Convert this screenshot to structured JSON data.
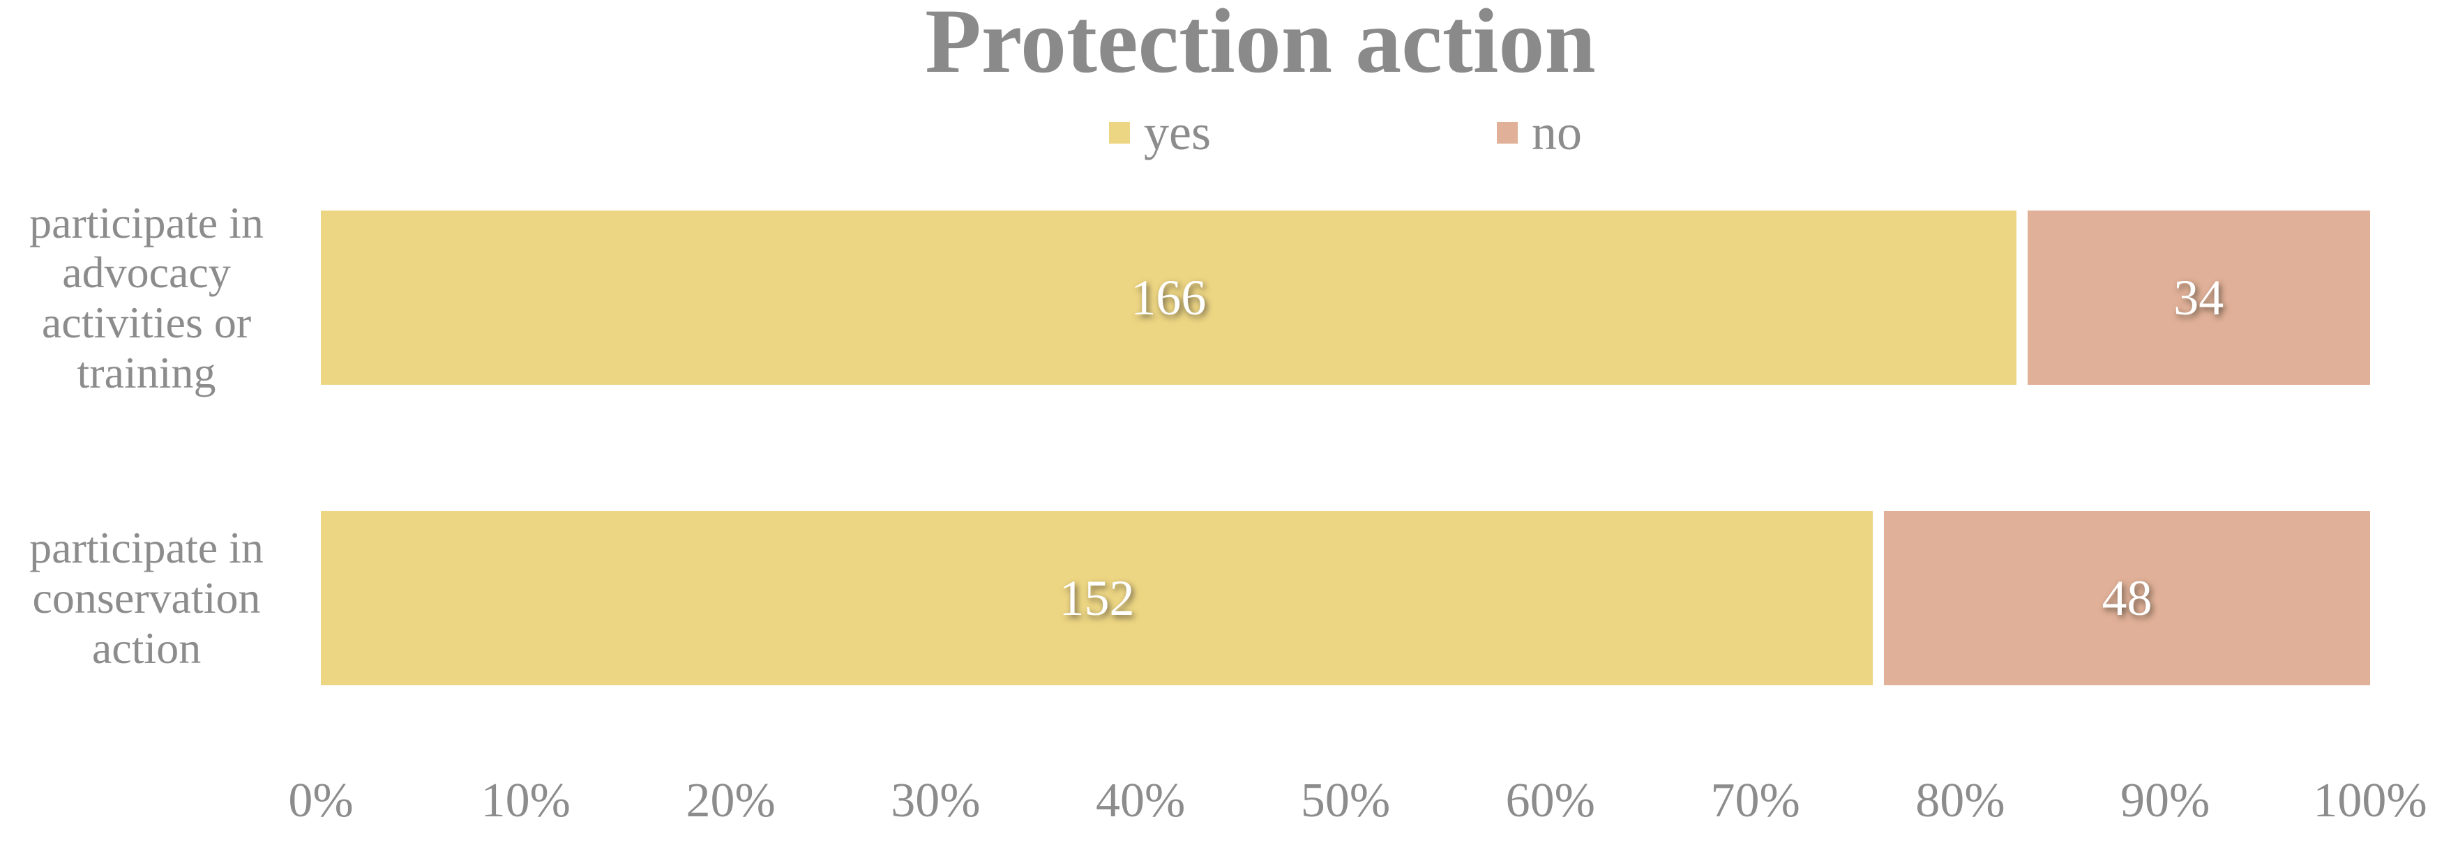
{
  "chart_data": {
    "type": "bar",
    "orientation": "horizontal",
    "stacking": "100%",
    "title": "Protection action",
    "categories": [
      "participate in advocacy activities or training",
      "participate in conservation action"
    ],
    "series": [
      {
        "name": "yes",
        "color": "#EDD683",
        "values": [
          166,
          152
        ]
      },
      {
        "name": "no",
        "color": "#E1B098",
        "values": [
          34,
          48
        ]
      }
    ],
    "totals": [
      200,
      200
    ],
    "value_labels": [
      [
        "166",
        "34"
      ],
      [
        "152",
        "48"
      ]
    ],
    "x_axis": {
      "tick_labels": [
        "0%",
        "10%",
        "20%",
        "30%",
        "40%",
        "50%",
        "60%",
        "70%",
        "80%",
        "90%",
        "100%"
      ],
      "min_pct": 0,
      "max_pct": 100
    },
    "legend": {
      "position": "top",
      "entries": [
        "yes",
        "no"
      ]
    },
    "gridlines": false,
    "colors": {
      "yes": "#EDD683",
      "no": "#E1B098",
      "text_gray": "#8c8c8c",
      "title_gray": "#8a8a8a",
      "value_label": "#ffffff",
      "background": "#ffffff"
    }
  }
}
